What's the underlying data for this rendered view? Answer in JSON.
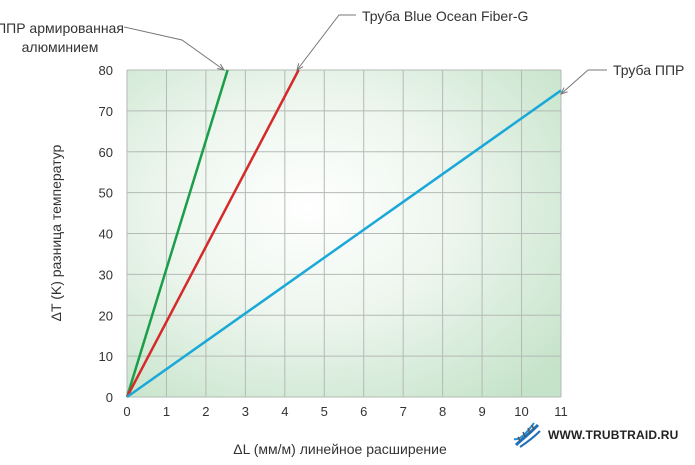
{
  "chart_data": {
    "type": "line",
    "xlabel": "ΔL (мм/м) линейное расширение",
    "ylabel": "ΔT (K) разница температур",
    "x_ticks": [
      0,
      1,
      2,
      3,
      4,
      5,
      6,
      7,
      8,
      9,
      10,
      11
    ],
    "y_ticks": [
      0,
      10,
      20,
      30,
      40,
      50,
      60,
      70,
      80
    ],
    "xlim": [
      0,
      11
    ],
    "ylim": [
      0,
      80
    ],
    "grid": true,
    "series": [
      {
        "name": "ППР армированная алюминием",
        "label_lines": [
          "ППР армированная",
          "алюминием"
        ],
        "color": "#1a9e4a",
        "points": [
          [
            0,
            0
          ],
          [
            2.55,
            80
          ]
        ]
      },
      {
        "name": "Труба Blue Ocean Fiber-G",
        "label_lines": [
          "Труба Blue Ocean Fiber-G"
        ],
        "color": "#d42a2a",
        "points": [
          [
            0,
            0
          ],
          [
            4.35,
            80
          ]
        ]
      },
      {
        "name": "Труба ППР",
        "label_lines": [
          "Труба ППР"
        ],
        "color": "#1aa8d8",
        "points": [
          [
            0,
            0
          ],
          [
            11,
            75
          ]
        ]
      }
    ]
  },
  "watermark": {
    "text": "WWW.TRUBTRAID.RU",
    "icon": "dna-helix-icon"
  }
}
